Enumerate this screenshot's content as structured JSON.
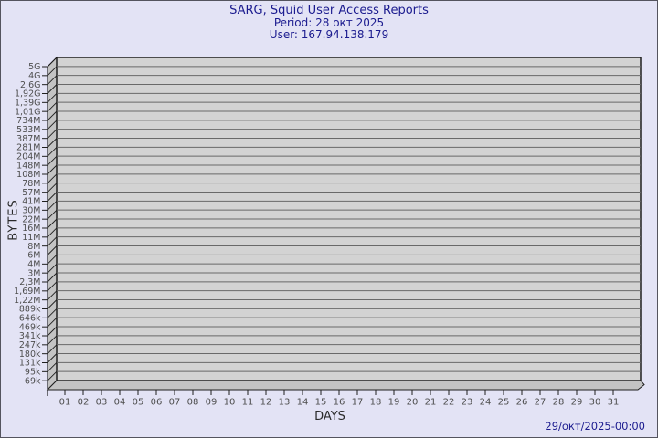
{
  "header": {
    "title": "SARG, Squid User Access Reports",
    "period": "Period: 28 окт 2025",
    "user": "User: 167.94.138.179"
  },
  "footer": {
    "timestamp": "29/окт/2025-00:00"
  },
  "chart_data": {
    "type": "bar",
    "title": "SARG, Squid User Access Reports",
    "subtitle": [
      "Period: 28 окт 2025",
      "User: 167.94.138.179"
    ],
    "xlabel": "DAYS",
    "ylabel": "BYTES",
    "x_ticks": [
      "01",
      "02",
      "03",
      "04",
      "05",
      "06",
      "07",
      "08",
      "09",
      "10",
      "11",
      "12",
      "13",
      "14",
      "15",
      "16",
      "17",
      "18",
      "19",
      "20",
      "21",
      "22",
      "23",
      "24",
      "25",
      "26",
      "27",
      "28",
      "29",
      "30",
      "31"
    ],
    "y_ticks": [
      "5G",
      "4G",
      "2,6G",
      "1,92G",
      "1,39G",
      "1,01G",
      "734M",
      "533M",
      "387M",
      "281M",
      "204M",
      "148M",
      "108M",
      "78M",
      "57M",
      "41M",
      "30M",
      "22M",
      "16M",
      "11M",
      "8M",
      "6M",
      "4M",
      "3M",
      "2,3M",
      "1,69M",
      "1,22M",
      "889k",
      "646k",
      "469k",
      "341k",
      "247k",
      "180k",
      "131k",
      "95k",
      "69k"
    ],
    "y_scale": "log",
    "ylim": [
      "69k",
      "5G"
    ],
    "grid": "horizontal",
    "legend": "none",
    "categories": [
      "01",
      "02",
      "03",
      "04",
      "05",
      "06",
      "07",
      "08",
      "09",
      "10",
      "11",
      "12",
      "13",
      "14",
      "15",
      "16",
      "17",
      "18",
      "19",
      "20",
      "21",
      "22",
      "23",
      "24",
      "25",
      "26",
      "27",
      "28",
      "29",
      "30",
      "31"
    ],
    "values": []
  },
  "colors": {
    "background": "#e3e3f5",
    "border": "#54545e",
    "title_text": "#1b1b8f",
    "timestamp_text": "#1b1b8f",
    "plot_face": "#d3d3d3",
    "plot_wall": "#c3c3c3",
    "grid_line": "#696969",
    "outline": "#1f1f1f",
    "tick_label": "#4e4e4e",
    "axis_title": "#2b2b2b"
  }
}
